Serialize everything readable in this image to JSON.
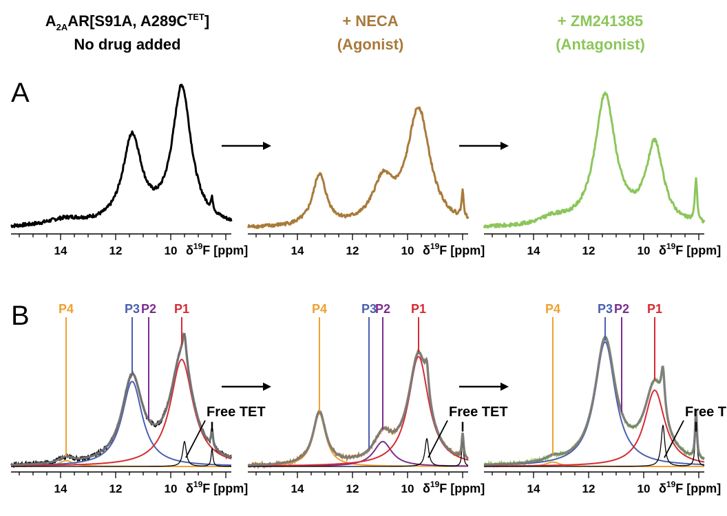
{
  "headers": [
    {
      "line1_main": "A",
      "line1_sub": "2A",
      "line1_rest": "AR[S91A, A289C",
      "line1_sup": "TET",
      "line1_end": "]",
      "line2": "No drug added",
      "color": "#000000"
    },
    {
      "line1": "+ NECA",
      "line2": "(Agonist)",
      "color": "#a87a3a"
    },
    {
      "line1": "+ ZM241385",
      "line2": "(Antagonist)",
      "color": "#8cc65a"
    }
  ],
  "panel_labels": {
    "a": "A",
    "b": "B"
  },
  "arrow_glyph": "⟶",
  "axis": {
    "label_prefix": "δ",
    "label_sup": "19",
    "label_suffix": "F [ppm]",
    "ticks": [
      14,
      12,
      10
    ],
    "xlim": [
      15.8,
      7.8
    ]
  },
  "colors": {
    "free": "#000000",
    "neca": "#a87a3a",
    "zm": "#8cc65a",
    "fit": "#7a7a7a",
    "P1": "#d62a33",
    "P2": "#7b2d8e",
    "P3": "#4a5fb0",
    "P4": "#f0a030",
    "tet": "#000000"
  },
  "peak_labels": {
    "P4": "P4",
    "P3": "P3",
    "P2": "P2",
    "P1": "P1",
    "free_tet": "Free TET"
  },
  "chart_data": [
    {
      "type": "line",
      "name": "free",
      "peaks": [
        {
          "ppm": 11.4,
          "h": 0.6,
          "w": 0.42
        },
        {
          "ppm": 9.6,
          "h": 0.95,
          "w": 0.42
        },
        {
          "ppm": 13.8,
          "h": 0.05,
          "w": 0.9
        },
        {
          "ppm": 8.5,
          "h": 0.08,
          "w": 0.05
        }
      ]
    },
    {
      "type": "line",
      "name": "neca",
      "peaks": [
        {
          "ppm": 13.2,
          "h": 0.35,
          "w": 0.3
        },
        {
          "ppm": 10.9,
          "h": 0.28,
          "w": 0.45
        },
        {
          "ppm": 9.6,
          "h": 0.8,
          "w": 0.5
        },
        {
          "ppm": 8.0,
          "h": 0.18,
          "w": 0.05
        }
      ]
    },
    {
      "type": "line",
      "name": "zm",
      "peaks": [
        {
          "ppm": 11.4,
          "h": 0.9,
          "w": 0.45
        },
        {
          "ppm": 9.6,
          "h": 0.55,
          "w": 0.38
        },
        {
          "ppm": 13.3,
          "h": 0.05,
          "w": 0.6
        },
        {
          "ppm": 8.1,
          "h": 0.3,
          "w": 0.05
        }
      ]
    },
    {
      "type": "line",
      "name": "free-deconv",
      "components": [
        {
          "id": "P4",
          "ppm": 13.8,
          "h": 0.04,
          "w": 0.3
        },
        {
          "id": "P3",
          "ppm": 11.4,
          "h": 0.58,
          "w": 0.45
        },
        {
          "id": "P2",
          "ppm": 10.8,
          "h": 0.0,
          "w": 0.4
        },
        {
          "id": "P1",
          "ppm": 9.6,
          "h": 0.73,
          "w": 0.5
        }
      ],
      "tet": [
        {
          "ppm": 9.5,
          "h": 0.17,
          "w": 0.08
        },
        {
          "ppm": 8.5,
          "h": 0.12,
          "w": 0.04
        }
      ],
      "markers": {
        "P4": 13.8,
        "P3": 11.4,
        "P2": 10.8,
        "P1": 9.6
      }
    },
    {
      "type": "line",
      "name": "neca-deconv",
      "components": [
        {
          "id": "P4",
          "ppm": 13.2,
          "h": 0.36,
          "w": 0.28
        },
        {
          "id": "P3",
          "ppm": 11.4,
          "h": 0.0,
          "w": 0.4
        },
        {
          "id": "P2",
          "ppm": 10.9,
          "h": 0.17,
          "w": 0.4
        },
        {
          "id": "P1",
          "ppm": 9.6,
          "h": 0.75,
          "w": 0.45
        }
      ],
      "tet": [
        {
          "ppm": 9.3,
          "h": 0.19,
          "w": 0.08
        },
        {
          "ppm": 8.0,
          "h": 0.17,
          "w": 0.04
        }
      ],
      "markers": {
        "P4": 13.2,
        "P3": 11.4,
        "P2": 10.9,
        "P1": 9.6
      }
    },
    {
      "type": "line",
      "name": "zm-deconv",
      "components": [
        {
          "id": "P4",
          "ppm": 13.3,
          "h": 0.03,
          "w": 0.3
        },
        {
          "id": "P3",
          "ppm": 11.4,
          "h": 0.85,
          "w": 0.45
        },
        {
          "id": "P2",
          "ppm": 10.8,
          "h": 0.0,
          "w": 0.4
        },
        {
          "id": "P1",
          "ppm": 9.6,
          "h": 0.52,
          "w": 0.45
        }
      ],
      "tet": [
        {
          "ppm": 9.3,
          "h": 0.28,
          "w": 0.08
        },
        {
          "ppm": 8.1,
          "h": 0.33,
          "w": 0.04
        }
      ],
      "markers": {
        "P4": 13.3,
        "P3": 11.4,
        "P2": 10.8,
        "P1": 9.6
      }
    }
  ]
}
